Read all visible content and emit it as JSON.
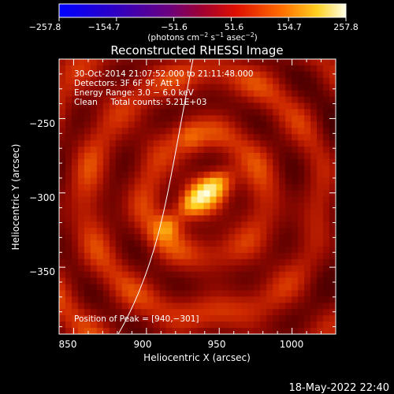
{
  "colorbar": {
    "ticks": [
      "−257.8",
      "−154.7",
      "−51.6",
      "51.6",
      "154.7",
      "257.8"
    ],
    "unit_prefix": "(photons cm",
    "unit_sup1": "−2",
    "unit_mid": " s",
    "unit_sup2": "−1",
    "unit_mid2": " asec",
    "unit_sup3": "−2",
    "unit_suffix": ")"
  },
  "footer": {
    "timestamp": "18‑May‑2022 22:40"
  },
  "chart_data": {
    "type": "heatmap",
    "title": "Reconstructed RHESSI Image",
    "xlabel": "Heliocentric X (arcsec)",
    "ylabel": "Heliocentric Y (arcsec)",
    "xlim": [
      840,
      1030
    ],
    "ylim": [
      -395,
      -210
    ],
    "xticks": [
      "850",
      "900",
      "950",
      "1000"
    ],
    "yticks": [
      "−250",
      "−300",
      "−350"
    ],
    "xtick_values": [
      850,
      900,
      950,
      1000
    ],
    "ytick_values": [
      -250,
      -300,
      -350
    ],
    "color_range": [
      -257.8,
      257.8
    ],
    "colormap": "black-blue-purple-red-orange-yellow-white",
    "annotations": [
      "30‑Oct‑2014 21:07:52.000 to 21:11:48.000",
      "Detectors: 3F 6F 9F, Att 1",
      "Energy Range: 3.0 − 6.0 keV",
      "Clean     Total counts: 5.21E+03"
    ],
    "peak_label": "Position of Peak = [940,−301]",
    "peak": [
      940,
      -301
    ],
    "sources": [
      {
        "x": 940,
        "y": -301,
        "intensity": 257.8
      },
      {
        "x": 913,
        "y": -325,
        "intensity": 150
      },
      {
        "x": 930,
        "y": -262,
        "intensity": 90
      }
    ]
  }
}
